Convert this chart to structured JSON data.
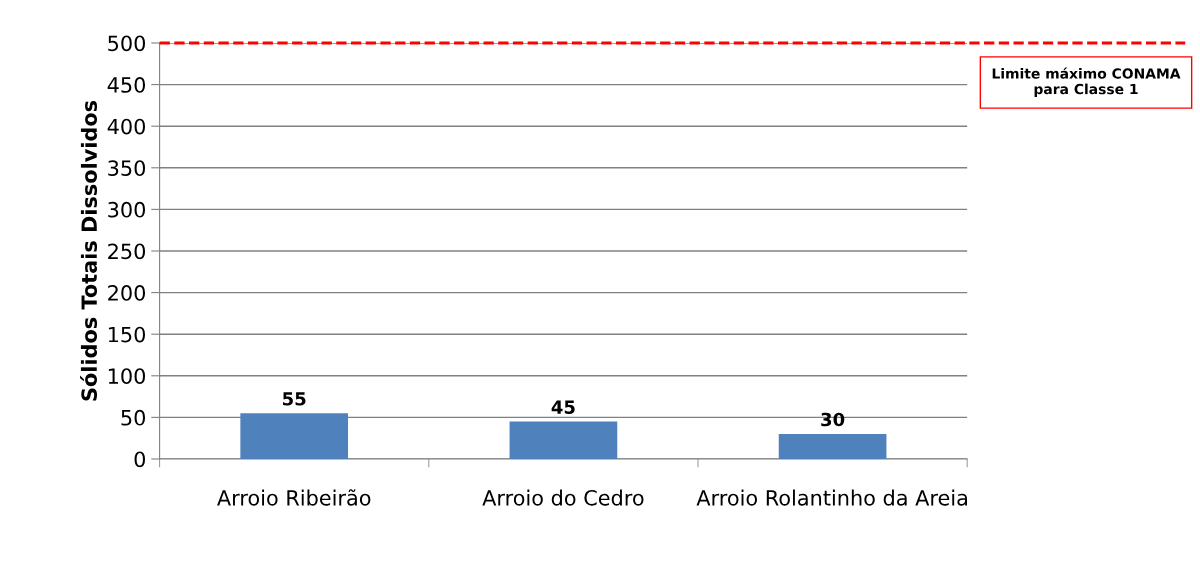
{
  "chart_data": {
    "type": "bar",
    "ylabel": "Sólidos Totais Dissolvidos",
    "categories": [
      "Arroio Ribeirão",
      "Arroio do Cedro",
      "Arroio Rolantinho da Areia"
    ],
    "values": [
      55,
      45,
      30
    ],
    "color": "#4f81bd",
    "data_labels": true,
    "ylim": [
      0,
      500
    ],
    "yticks": [
      0,
      50,
      100,
      150,
      200,
      250,
      300,
      350,
      400,
      450,
      500
    ],
    "grid": "y",
    "ref_lines": [
      {
        "axis": "y",
        "value": 500,
        "label": "Limite máximo CONAMA para Classe 1",
        "color": "#ff0000",
        "line_style": "dashed"
      }
    ]
  }
}
